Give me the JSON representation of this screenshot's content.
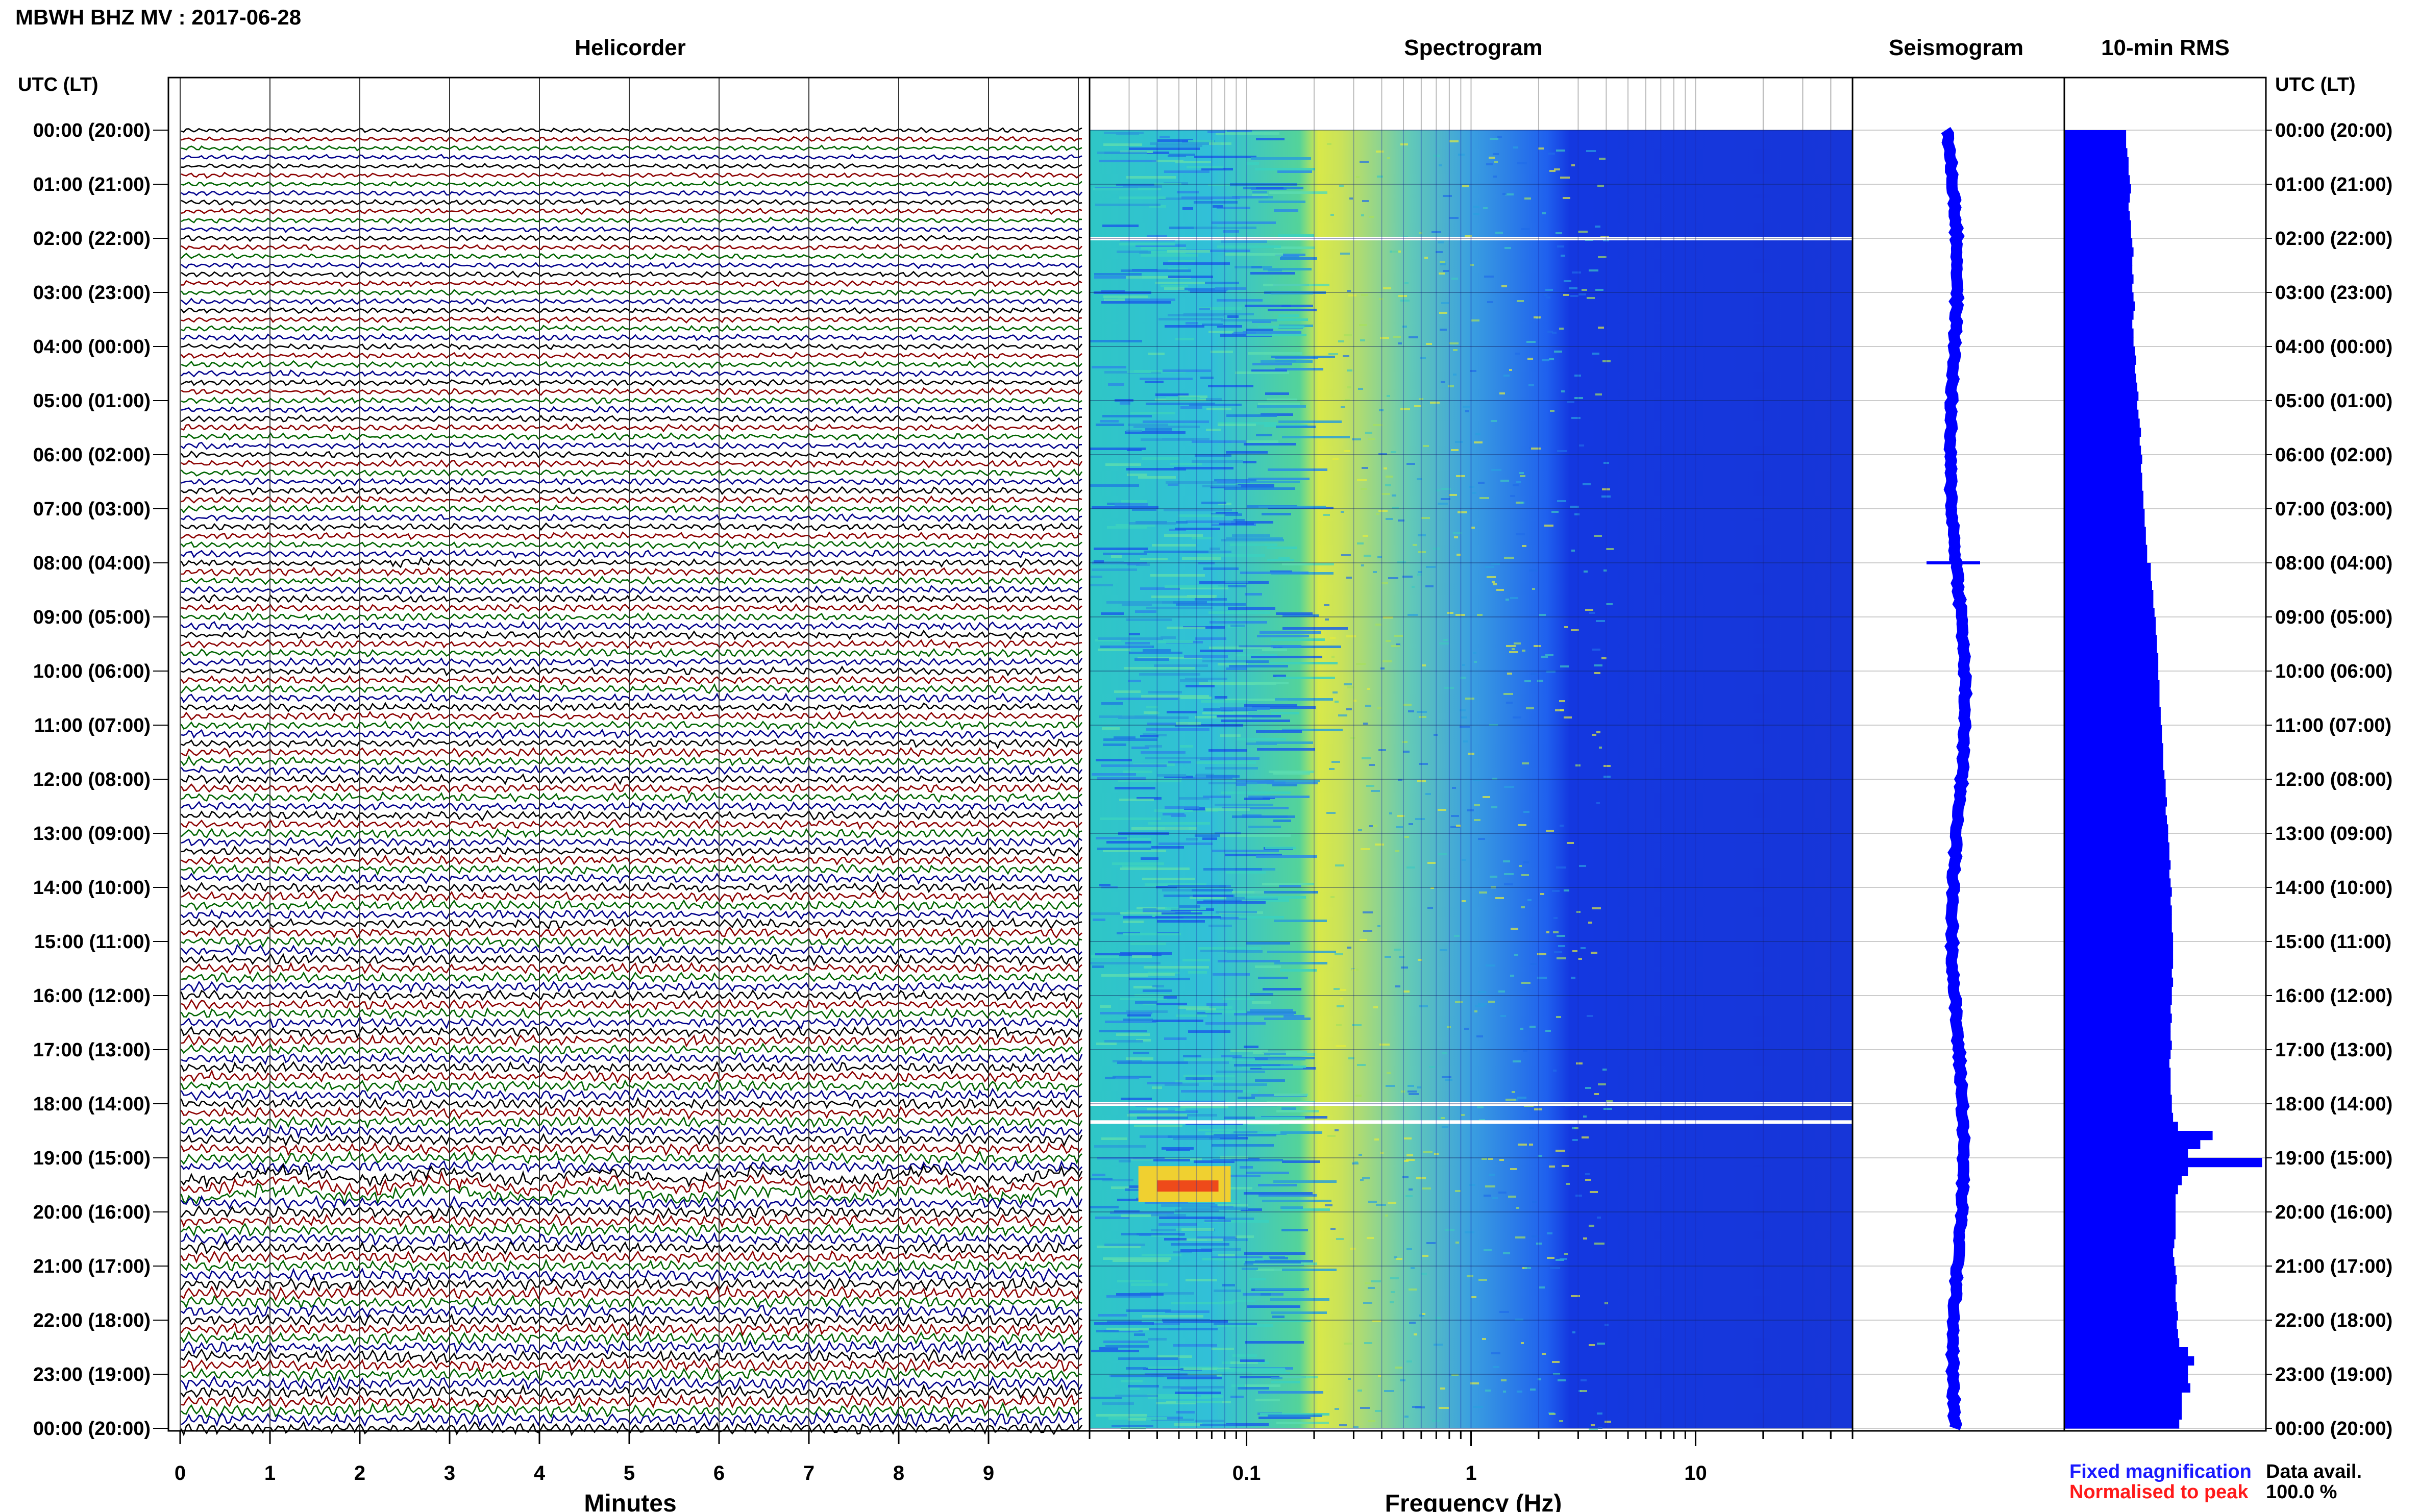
{
  "header": {
    "station_title": "MBWH BHZ MV : 2017-06-28",
    "utc_lt_label_left": "UTC (LT)",
    "utc_lt_label_right": "UTC (LT)"
  },
  "panels": {
    "helicorder_title": "Helicorder",
    "spectrogram_title": "Spectrogram",
    "seismogram_title": "Seismogram",
    "rms_title": "10-min RMS"
  },
  "axes": {
    "helicorder_xlabel": "Minutes",
    "spectrogram_xlabel": "Frequency (Hz)"
  },
  "legend": {
    "fixed_magnification": "Fixed magnification",
    "normalised_to_peak": "Normalised to peak",
    "fixed_color": "#1a1aff",
    "normalised_color": "#ff1a1a"
  },
  "data_availability": {
    "label": "Data avail.",
    "value": "100.0 %"
  },
  "colors": {
    "trace_cycle": [
      "#000000",
      "#8b0000",
      "#006400",
      "#00008b"
    ],
    "rms_bar": "#0000ff",
    "seismogram": "#0000ff"
  },
  "chart_data": [
    {
      "type": "line",
      "name": "helicorder",
      "xlabel": "Minutes",
      "x_ticks": [
        "0",
        "1",
        "2",
        "3",
        "4",
        "5",
        "6",
        "7",
        "8",
        "9"
      ],
      "xlim": [
        0,
        10
      ],
      "rows_per_hour": 6,
      "hours": 24,
      "note_events": [
        {
          "row_time_utc": "08:00",
          "minute": 2.5
        },
        {
          "row_time_utc": "19:20",
          "minute": 3.0
        }
      ]
    },
    {
      "type": "heatmap",
      "name": "spectrogram",
      "xlabel": "Frequency (Hz)",
      "x_scale": "log",
      "xlim": [
        0.02,
        50
      ],
      "x_ticks": [
        "0.1",
        "1",
        "10"
      ],
      "y_range_utc": [
        "00:00",
        "24:00"
      ],
      "gaps_utc": [
        "02:00",
        "18:00",
        "18:20"
      ]
    },
    {
      "type": "line",
      "name": "seismogram",
      "y_range_utc": [
        "00:00",
        "24:00"
      ]
    },
    {
      "type": "bar",
      "name": "10-min RMS",
      "orientation": "horizontal",
      "relative_values": [
        0.5,
        0.5,
        0.51,
        0.52,
        0.52,
        0.53,
        0.54,
        0.53,
        0.52,
        0.53,
        0.54,
        0.54,
        0.55,
        0.56,
        0.55,
        0.55,
        0.56,
        0.55,
        0.56,
        0.57,
        0.56,
        0.55,
        0.56,
        0.56,
        0.57,
        0.58,
        0.57,
        0.58,
        0.59,
        0.6,
        0.59,
        0.6,
        0.61,
        0.62,
        0.61,
        0.62,
        0.63,
        0.62,
        0.63,
        0.63,
        0.64,
        0.64,
        0.65,
        0.65,
        0.66,
        0.66,
        0.67,
        0.67,
        0.7,
        0.7,
        0.71,
        0.72,
        0.72,
        0.73,
        0.74,
        0.74,
        0.75,
        0.75,
        0.76,
        0.76,
        0.76,
        0.77,
        0.77,
        0.77,
        0.78,
        0.78,
        0.79,
        0.79,
        0.8,
        0.8,
        0.8,
        0.81,
        0.82,
        0.82,
        0.83,
        0.82,
        0.83,
        0.84,
        0.84,
        0.85,
        0.85,
        0.86,
        0.85,
        0.86,
        0.87,
        0.86,
        0.87,
        0.87,
        0.87,
        0.88,
        0.88,
        0.88,
        0.88,
        0.87,
        0.88,
        0.87,
        0.87,
        0.86,
        0.87,
        0.86,
        0.86,
        0.87,
        0.86,
        0.85,
        0.86,
        0.86,
        0.86,
        0.87,
        0.87,
        0.88,
        0.92,
        1.2,
        1.1,
        1.0,
        1.6,
        1.0,
        0.95,
        0.92,
        0.9,
        0.9,
        0.9,
        0.9,
        0.9,
        0.89,
        0.88,
        0.89,
        0.9,
        0.91,
        0.9,
        0.9,
        0.91,
        0.92,
        0.91,
        0.92,
        0.93,
        1.0,
        1.05,
        1.0,
        1.0,
        1.02,
        0.95,
        0.95,
        0.95,
        0.93
      ]
    }
  ],
  "time_labels": [
    "00:00 (20:00)",
    "01:00 (21:00)",
    "02:00 (22:00)",
    "03:00 (23:00)",
    "04:00 (00:00)",
    "05:00 (01:00)",
    "06:00 (02:00)",
    "07:00 (03:00)",
    "08:00 (04:00)",
    "09:00 (05:00)",
    "10:00 (06:00)",
    "11:00 (07:00)",
    "12:00 (08:00)",
    "13:00 (09:00)",
    "14:00 (10:00)",
    "15:00 (11:00)",
    "16:00 (12:00)",
    "17:00 (13:00)",
    "18:00 (14:00)",
    "19:00 (15:00)",
    "20:00 (16:00)",
    "21:00 (17:00)",
    "22:00 (18:00)",
    "23:00 (19:00)",
    "00:00 (20:00)"
  ]
}
